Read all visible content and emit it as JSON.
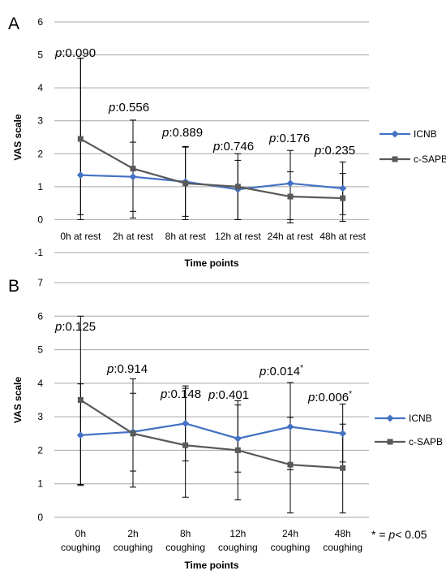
{
  "chart_data": [
    {
      "type": "line",
      "panel_label": "A",
      "xlabel": "Time points",
      "ylabel": "VAS scale",
      "ylim": [
        -1,
        6
      ],
      "yticks": [
        -1,
        0,
        1,
        2,
        3,
        4,
        5,
        6
      ],
      "grid": true,
      "legend_position": "right",
      "categories": [
        "0h at rest",
        "2h at rest",
        "8h at rest",
        "12h at rest",
        "24h at rest",
        "48h at rest"
      ],
      "series": [
        {
          "name": "ICNB",
          "color": "#4472c4",
          "marker": "diamond",
          "values": [
            1.35,
            1.3,
            1.15,
            0.92,
            1.1,
            0.95
          ],
          "error_low": [
            0.15,
            0.25,
            0.1,
            0.0,
            0.0,
            0.15
          ],
          "error_high": [
            4.9,
            2.35,
            2.2,
            1.8,
            1.45,
            1.75
          ]
        },
        {
          "name": "c-SAPB",
          "color": "#595959",
          "marker": "square",
          "values": [
            2.45,
            1.55,
            1.1,
            1.0,
            0.7,
            0.65
          ],
          "error_low": [
            0.0,
            0.05,
            0.0,
            0.0,
            -0.1,
            -0.05
          ],
          "error_high": [
            4.9,
            3.02,
            2.22,
            2.0,
            2.1,
            1.4
          ]
        }
      ],
      "annotations": [
        {
          "category": "0h at rest",
          "prefix": "p",
          "text": ":0.090",
          "star": ""
        },
        {
          "category": "2h at rest",
          "prefix": "p",
          "text": ":0.556",
          "star": ""
        },
        {
          "category": "8h at rest",
          "prefix": "p",
          "text": ":0.889",
          "star": ""
        },
        {
          "category": "12h at rest",
          "prefix": "p",
          "text": ":0.746",
          "star": ""
        },
        {
          "category": "24h at rest",
          "prefix": "p",
          "text": ":0.176",
          "star": ""
        },
        {
          "category": "48h at rest",
          "prefix": "p",
          "text": ":0.235",
          "star": ""
        }
      ]
    },
    {
      "type": "line",
      "panel_label": "B",
      "xlabel": "Time points",
      "ylabel": "VAS scale",
      "ylim": [
        0,
        7
      ],
      "yticks": [
        0,
        1,
        2,
        3,
        4,
        5,
        6,
        7
      ],
      "grid": true,
      "legend_position": "right",
      "categories": [
        "0h coughing",
        "2h coughing",
        "8h coughing",
        "12h coughing",
        "24h coughing",
        "48h coughing"
      ],
      "category_lines": [
        [
          "0h",
          "coughing"
        ],
        [
          "2h",
          "coughing"
        ],
        [
          "8h",
          "coughing"
        ],
        [
          "12h",
          "coughing"
        ],
        [
          "24h",
          "coughing"
        ],
        [
          "48h",
          "coughing"
        ]
      ],
      "series": [
        {
          "name": "ICNB",
          "color": "#4472c4",
          "marker": "diamond",
          "values": [
            2.45,
            2.55,
            2.8,
            2.35,
            2.7,
            2.5
          ],
          "error_low": [
            0.95,
            1.38,
            1.68,
            1.35,
            1.42,
            1.65
          ],
          "error_high": [
            3.98,
            3.7,
            3.92,
            3.35,
            2.98,
            2.78
          ]
        },
        {
          "name": "c-SAPB",
          "color": "#595959",
          "marker": "square",
          "values": [
            3.5,
            2.5,
            2.15,
            2.0,
            1.57,
            1.47
          ],
          "error_low": [
            0.98,
            0.9,
            0.6,
            0.52,
            0.13,
            0.13
          ],
          "error_high": [
            6.0,
            4.13,
            3.85,
            3.48,
            4.02,
            3.38
          ]
        }
      ],
      "annotations": [
        {
          "category": "0h coughing",
          "prefix": "p",
          "text": ":0.125",
          "star": ""
        },
        {
          "category": "2h coughing",
          "prefix": "p",
          "text": ":0.914",
          "star": ""
        },
        {
          "category": "8h coughing",
          "prefix": "p",
          "text": ":0.148",
          "star": ""
        },
        {
          "category": "12h coughing",
          "prefix": "p",
          "text": ":0.401",
          "star": ""
        },
        {
          "category": "24h coughing",
          "prefix": "p",
          "text": ":0.014",
          "star": "*"
        },
        {
          "category": "48h coughing",
          "prefix": "p",
          "text": ":0.006",
          "star": "*"
        }
      ],
      "footnote": {
        "star": "*",
        "equals": " = ",
        "prefix": "p",
        "text": "< 0.05"
      }
    }
  ]
}
